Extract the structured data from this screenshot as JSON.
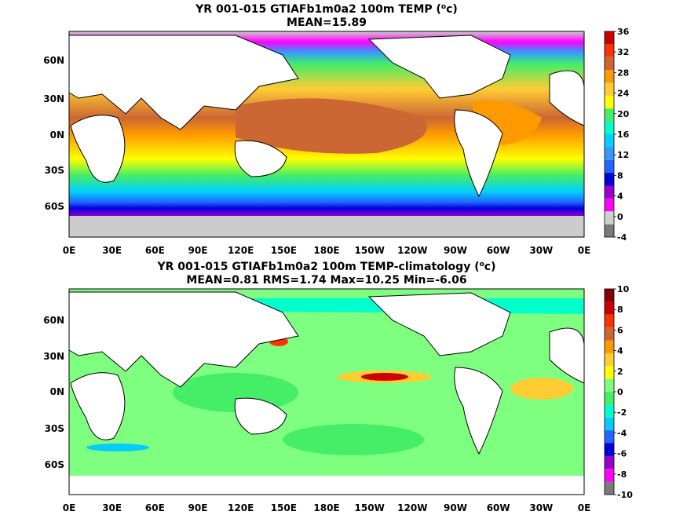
{
  "panels": [
    {
      "title": "YR 001-015 GTIAFb1m0a2 100m TEMP (",
      "unit_mid": "o",
      "unit_end": "c)",
      "subtitle": "MEAN=15.89",
      "colorbar_labels": [
        "36",
        "32",
        "28",
        "24",
        "20",
        "16",
        "12",
        "8",
        "4",
        "0",
        "-4"
      ],
      "lat_labels": [
        "60N",
        "30N",
        "0N",
        "30S",
        "60S"
      ],
      "lon_labels": [
        "0E",
        "30E",
        "60E",
        "90E",
        "120E",
        "150E",
        "180E",
        "150W",
        "120W",
        "90W",
        "60W",
        "30W",
        "0E"
      ]
    },
    {
      "title": "YR 001-015 GTIAFb1m0a2 100m TEMP-climatology (",
      "unit_mid": "o",
      "unit_end": "c)",
      "subtitle": "MEAN=0.81   RMS=1.74   Max=10.25   Min=-6.06",
      "colorbar_labels": [
        "10",
        "8",
        "6",
        "4",
        "2",
        "0",
        "-2",
        "-4",
        "-6",
        "-8",
        "-10"
      ],
      "lat_labels": [
        "60N",
        "30N",
        "0N",
        "30S",
        "60S"
      ],
      "lon_labels": [
        "0E",
        "30E",
        "60E",
        "90E",
        "120E",
        "150E",
        "180E",
        "150W",
        "120W",
        "90W",
        "60W",
        "30W",
        "0E"
      ]
    }
  ],
  "colors": {
    "temp_scale": [
      "#7a7a7a",
      "#d0d0d0",
      "#ff00ff",
      "#9900cc",
      "#0000dd",
      "#2266ff",
      "#3399ff",
      "#00d0ff",
      "#00ffcc",
      "#44ee66",
      "#ffff00",
      "#ffcc33",
      "#ff9900",
      "#cc6633",
      "#ff3300",
      "#cc0000"
    ],
    "anomaly_scale": [
      "#7a7a7a",
      "#ff00ff",
      "#9900cc",
      "#0000dd",
      "#2266ff",
      "#00ccff",
      "#00ffcc",
      "#44ee66",
      "#7fff7f",
      "#ffff00",
      "#ffcc33",
      "#ff9900",
      "#cc6633",
      "#ff3300",
      "#cc0000",
      "#880000"
    ],
    "land": "#ffffff",
    "ice": "#cccccc"
  }
}
